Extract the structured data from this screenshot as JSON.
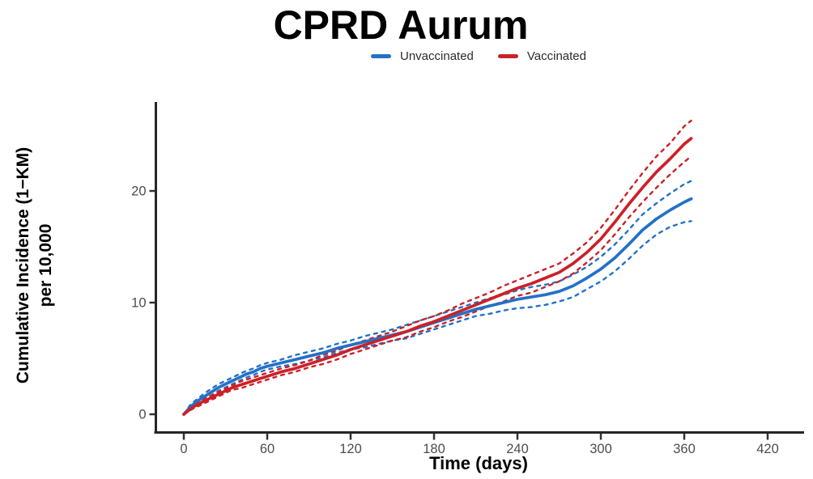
{
  "title": "CPRD Aurum",
  "legend": {
    "items": [
      {
        "label": "Unvaccinated",
        "color": "#2271c7"
      },
      {
        "label": "Vaccinated",
        "color": "#cb2127"
      }
    ]
  },
  "y_axis_label": {
    "line1": "Cumulative Incidence (1−KM)",
    "line2": "per 10,000"
  },
  "x_axis_label": "Time (days)",
  "colors": {
    "axis": "#262626",
    "tick": "#333333",
    "tick_label": "#4d4d4d",
    "title": "#000000",
    "unvaccinated": "#2271c7",
    "vaccinated": "#cb2127",
    "background": "#ffffff"
  },
  "chart_data": {
    "type": "line",
    "title": "CPRD Aurum",
    "xlabel": "Time (days)",
    "ylabel": "Cumulative Incidence (1−KM) per 10,000",
    "x_ticks": [
      0,
      60,
      120,
      180,
      240,
      300,
      360,
      420
    ],
    "y_ticks": [
      0,
      10,
      20
    ],
    "xlim": [
      0,
      445
    ],
    "ylim": [
      -1.5,
      27.8
    ],
    "grid": false,
    "legend_position": "top-center",
    "x": [
      0,
      5,
      10,
      15,
      20,
      25,
      30,
      35,
      40,
      45,
      50,
      55,
      60,
      70,
      80,
      90,
      100,
      110,
      120,
      130,
      140,
      150,
      160,
      170,
      180,
      190,
      200,
      210,
      220,
      230,
      240,
      250,
      260,
      270,
      280,
      290,
      300,
      310,
      320,
      330,
      340,
      350,
      360,
      365
    ],
    "series": [
      {
        "name": "Unvaccinated",
        "style": "solid",
        "color": "#2271c7",
        "values": [
          0,
          0.7,
          1.2,
          1.6,
          2.0,
          2.4,
          2.7,
          3.0,
          3.3,
          3.6,
          3.8,
          4.1,
          4.3,
          4.6,
          4.9,
          5.2,
          5.5,
          5.9,
          6.2,
          6.5,
          6.8,
          7.1,
          7.4,
          7.8,
          8.2,
          8.6,
          9.0,
          9.4,
          9.7,
          10.0,
          10.3,
          10.5,
          10.7,
          11.0,
          11.5,
          12.2,
          13.0,
          14.0,
          15.2,
          16.5,
          17.5,
          18.3,
          19.0,
          19.3
        ]
      },
      {
        "name": "Unvaccinated 95% CI upper",
        "style": "dashed",
        "color": "#2271c7",
        "values": [
          0,
          0.9,
          1.4,
          1.9,
          2.3,
          2.7,
          3.0,
          3.3,
          3.6,
          3.9,
          4.1,
          4.4,
          4.6,
          4.9,
          5.3,
          5.6,
          5.9,
          6.3,
          6.6,
          7.0,
          7.3,
          7.6,
          8.0,
          8.4,
          8.8,
          9.2,
          9.6,
          10.0,
          10.4,
          10.7,
          11.1,
          11.4,
          11.6,
          11.9,
          12.5,
          13.2,
          14.1,
          15.2,
          16.5,
          17.9,
          18.9,
          19.8,
          20.6,
          20.9
        ]
      },
      {
        "name": "Unvaccinated 95% CI lower",
        "style": "dashed",
        "color": "#2271c7",
        "values": [
          0,
          0.5,
          0.9,
          1.3,
          1.7,
          2.1,
          2.4,
          2.7,
          3.0,
          3.3,
          3.5,
          3.8,
          4.0,
          4.3,
          4.5,
          4.8,
          5.1,
          5.5,
          5.8,
          6.0,
          6.3,
          6.6,
          6.8,
          7.2,
          7.6,
          8.0,
          8.4,
          8.8,
          9.0,
          9.3,
          9.5,
          9.6,
          9.8,
          10.1,
          10.5,
          11.2,
          11.9,
          12.8,
          13.9,
          15.1,
          16.1,
          16.8,
          17.2,
          17.3
        ]
      },
      {
        "name": "Vaccinated",
        "style": "solid",
        "color": "#cb2127",
        "values": [
          0,
          0.5,
          0.9,
          1.2,
          1.5,
          1.8,
          2.1,
          2.4,
          2.6,
          2.8,
          3.0,
          3.2,
          3.4,
          3.8,
          4.1,
          4.5,
          4.9,
          5.3,
          5.8,
          6.2,
          6.6,
          7.0,
          7.4,
          7.9,
          8.3,
          8.8,
          9.3,
          9.8,
          10.3,
          10.8,
          11.3,
          11.7,
          12.2,
          12.7,
          13.5,
          14.5,
          15.7,
          17.2,
          18.8,
          20.3,
          21.7,
          22.9,
          24.2,
          24.7
        ]
      },
      {
        "name": "Vaccinated 95% CI upper",
        "style": "dashed",
        "color": "#cb2127",
        "values": [
          0,
          0.6,
          1.1,
          1.4,
          1.7,
          2.0,
          2.3,
          2.6,
          2.9,
          3.1,
          3.3,
          3.5,
          3.7,
          4.1,
          4.4,
          4.8,
          5.3,
          5.7,
          6.2,
          6.6,
          7.0,
          7.4,
          7.9,
          8.4,
          8.8,
          9.3,
          9.9,
          10.4,
          10.9,
          11.5,
          12.0,
          12.5,
          13.0,
          13.5,
          14.4,
          15.4,
          16.7,
          18.3,
          20.0,
          21.6,
          23.1,
          24.3,
          25.8,
          26.3
        ]
      },
      {
        "name": "Vaccinated 95% CI lower",
        "style": "dashed",
        "color": "#cb2127",
        "values": [
          0,
          0.4,
          0.7,
          1.0,
          1.3,
          1.6,
          1.9,
          2.2,
          2.3,
          2.5,
          2.7,
          2.9,
          3.1,
          3.5,
          3.8,
          4.2,
          4.5,
          4.9,
          5.4,
          5.8,
          6.2,
          6.6,
          6.9,
          7.4,
          7.8,
          8.3,
          8.7,
          9.2,
          9.7,
          10.1,
          10.6,
          10.9,
          11.4,
          11.9,
          12.6,
          13.6,
          14.7,
          16.1,
          17.6,
          19.0,
          20.3,
          21.5,
          22.6,
          23.1
        ]
      }
    ]
  }
}
